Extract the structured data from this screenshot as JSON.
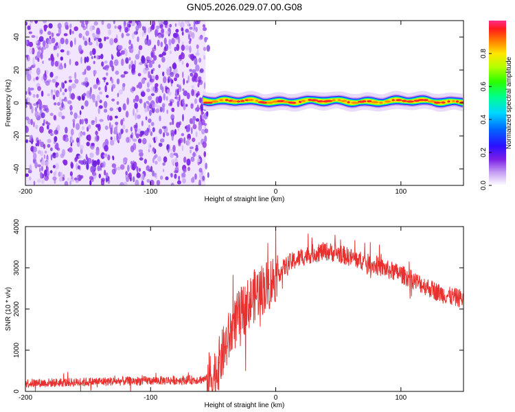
{
  "title": "GN05.2026.029.07.00.G08",
  "chart_data": [
    {
      "type": "heatmap",
      "xlabel": "Height of straight line (km)",
      "ylabel": "Frequency (Hz)",
      "xlim": [
        -200,
        150
      ],
      "ylim": [
        -50,
        50
      ],
      "x_ticks": [
        -200,
        -100,
        0,
        100
      ],
      "y_ticks": [
        -40,
        -20,
        0,
        20,
        40
      ],
      "x_tick_labels": [
        "-200",
        "-100",
        "0",
        "100"
      ],
      "y_tick_labels": [
        "-40",
        "-20",
        "0",
        "20",
        "40"
      ],
      "noise_region_x": [
        -200,
        -56
      ],
      "signal_region_x": [
        -58,
        150
      ],
      "signal_frequency_hz_approx": 1,
      "colorbar": {
        "label": "Normalized spectral amplitude",
        "range": [
          0,
          1
        ],
        "ticks": [
          0.0,
          0.2,
          0.4,
          0.6,
          0.8
        ],
        "tick_labels": [
          "0.0",
          "0.2",
          "0.4",
          "0.6",
          "0.8"
        ],
        "colormap": "rainbow"
      }
    },
    {
      "type": "line",
      "xlabel": "Height of straight line (km)",
      "ylabel": "SNR (10 * v/v)",
      "xlim": [
        -200,
        150
      ],
      "ylim": [
        0,
        4000
      ],
      "x_ticks": [
        -200,
        -100,
        0,
        100
      ],
      "y_ticks": [
        0,
        1000,
        2000,
        3000,
        4000
      ],
      "x_tick_labels": [
        "-200",
        "-100",
        "0",
        "100"
      ],
      "y_tick_labels": [
        "0",
        "1000",
        "2000",
        "3000",
        "4000"
      ],
      "color": "#e8302e",
      "series": [
        {
          "name": "SNR",
          "x": [
            -200,
            -180,
            -160,
            -140,
            -120,
            -100,
            -80,
            -65,
            -55,
            -50,
            -45,
            -40,
            -35,
            -30,
            -25,
            -20,
            -15,
            -10,
            -5,
            0,
            5,
            10,
            20,
            30,
            40,
            50,
            60,
            70,
            80,
            90,
            100,
            110,
            120,
            130,
            140,
            150
          ],
          "y": [
            200,
            210,
            220,
            240,
            250,
            260,
            270,
            280,
            300,
            350,
            700,
            1100,
            1500,
            1800,
            2000,
            2200,
            2400,
            2500,
            2600,
            2800,
            2950,
            3100,
            3250,
            3350,
            3400,
            3350,
            3250,
            3150,
            3050,
            2950,
            2850,
            2700,
            2550,
            2400,
            2300,
            2250
          ]
        }
      ]
    }
  ]
}
